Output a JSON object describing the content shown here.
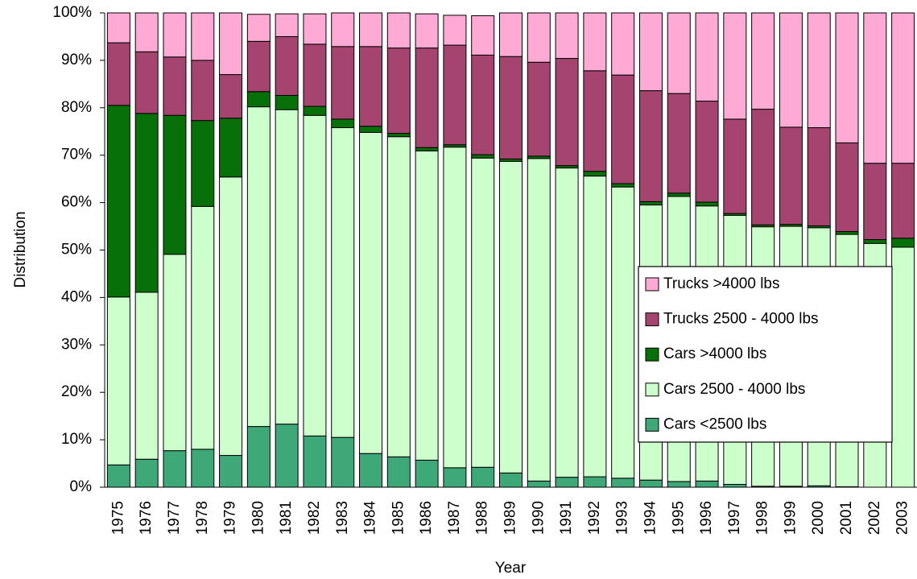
{
  "chart_data": {
    "type": "stacked-bar",
    "x_label": "Year",
    "y_label": "Distribution",
    "categories": [
      "1975",
      "1976",
      "1977",
      "1978",
      "1979",
      "1980",
      "1981",
      "1982",
      "1983",
      "1984",
      "1985",
      "1986",
      "1987",
      "1988",
      "1989",
      "1990",
      "1991",
      "1992",
      "1993",
      "1994",
      "1995",
      "1996",
      "1997",
      "1998",
      "1999",
      "2000",
      "2001",
      "2002",
      "2003"
    ],
    "series": [
      {
        "name": "Cars <2500 lbs",
        "color": "#3ea878",
        "values": [
          4.7,
          5.9,
          7.7,
          8.0,
          6.7,
          12.8,
          13.3,
          10.8,
          10.5,
          7.1,
          6.4,
          5.7,
          4.1,
          4.2,
          3.0,
          1.3,
          2.1,
          2.2,
          1.9,
          1.5,
          1.2,
          1.3,
          0.6,
          0.2,
          0.2,
          0.3,
          0.1,
          0.0,
          0.0
        ]
      },
      {
        "name": "Cars 2500 - 4000 lbs",
        "color": "#ccffcc",
        "values": [
          35.4,
          35.2,
          41.4,
          51.2,
          58.7,
          67.4,
          66.3,
          67.6,
          65.3,
          67.7,
          67.5,
          65.2,
          67.6,
          65.2,
          65.7,
          68.0,
          65.2,
          63.4,
          61.4,
          58.0,
          60.1,
          58.0,
          56.7,
          54.7,
          54.8,
          54.4,
          53.2,
          51.4,
          50.6
        ]
      },
      {
        "name": "Cars >4000 lbs",
        "color": "#087008",
        "values": [
          40.4,
          37.7,
          29.3,
          18.1,
          12.4,
          3.2,
          3.0,
          1.9,
          1.8,
          1.3,
          0.7,
          0.7,
          0.5,
          0.7,
          0.5,
          0.5,
          0.5,
          1.0,
          0.7,
          0.7,
          0.7,
          0.8,
          0.4,
          0.4,
          0.4,
          0.4,
          0.6,
          0.8,
          1.9
        ]
      },
      {
        "name": "Trucks 2500 - 4000 lbs",
        "color": "#a5446f",
        "values": [
          13.2,
          13.0,
          12.3,
          12.7,
          9.2,
          10.6,
          12.4,
          13.1,
          15.3,
          16.8,
          18.0,
          21.0,
          21.0,
          21.0,
          21.6,
          19.8,
          22.6,
          21.2,
          22.9,
          23.4,
          21.0,
          21.3,
          19.9,
          24.4,
          20.5,
          20.7,
          18.7,
          16.1,
          15.8
        ]
      },
      {
        "name": "Trucks >4000 lbs",
        "color": "#ffaad4",
        "values": [
          6.3,
          8.2,
          9.3,
          10.0,
          13.0,
          5.7,
          4.8,
          6.4,
          7.1,
          7.1,
          7.4,
          7.2,
          6.3,
          8.3,
          9.2,
          10.4,
          9.6,
          12.2,
          13.1,
          16.4,
          17.0,
          18.6,
          22.4,
          20.3,
          24.1,
          24.2,
          27.4,
          31.7,
          31.7
        ]
      }
    ],
    "ylim": [
      0,
      100
    ],
    "yticks": [
      {
        "value": 0,
        "label": "0%"
      },
      {
        "value": 10,
        "label": "10%"
      },
      {
        "value": 20,
        "label": "20%"
      },
      {
        "value": 30,
        "label": "30%"
      },
      {
        "value": 40,
        "label": "40%"
      },
      {
        "value": 50,
        "label": "50%"
      },
      {
        "value": 60,
        "label": "60%"
      },
      {
        "value": 70,
        "label": "70%"
      },
      {
        "value": 80,
        "label": "80%"
      },
      {
        "value": 90,
        "label": "90%"
      },
      {
        "value": 100,
        "label": "100%"
      }
    ],
    "legend": "lower-right",
    "grid": false
  }
}
